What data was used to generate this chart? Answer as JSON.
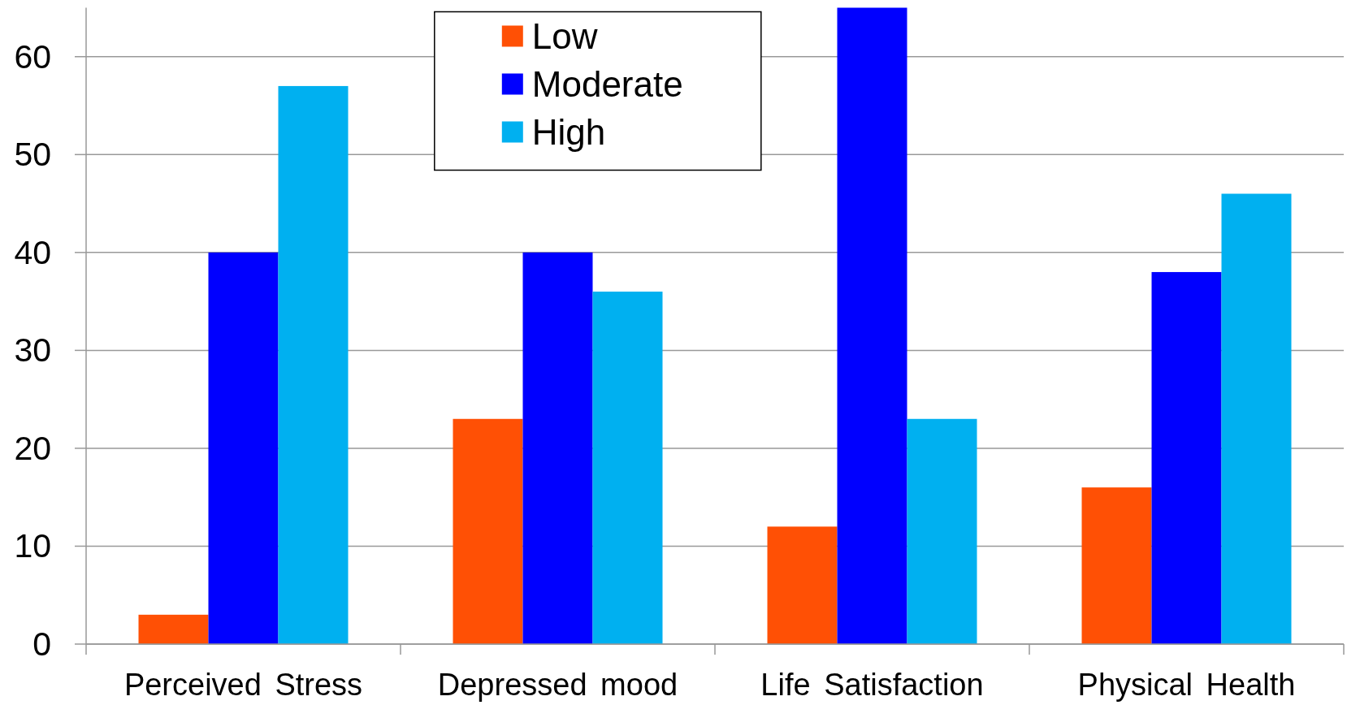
{
  "chart_data": {
    "type": "bar",
    "categories": [
      "Perceived Stress",
      "Depressed mood",
      "Life Satisfaction",
      "Physical Health"
    ],
    "series": [
      {
        "name": "Low",
        "color": "#ff5005",
        "values": [
          3,
          23,
          12,
          16
        ]
      },
      {
        "name": "Moderate",
        "color": "#0000ff",
        "values": [
          40,
          40,
          65,
          38
        ]
      },
      {
        "name": "High",
        "color": "#00b0f0",
        "values": [
          57,
          36,
          23,
          46
        ]
      }
    ],
    "ylim": [
      0,
      65
    ],
    "yticks": [
      0,
      10,
      20,
      30,
      40,
      50,
      60
    ],
    "grid": "y",
    "legend": "top"
  }
}
